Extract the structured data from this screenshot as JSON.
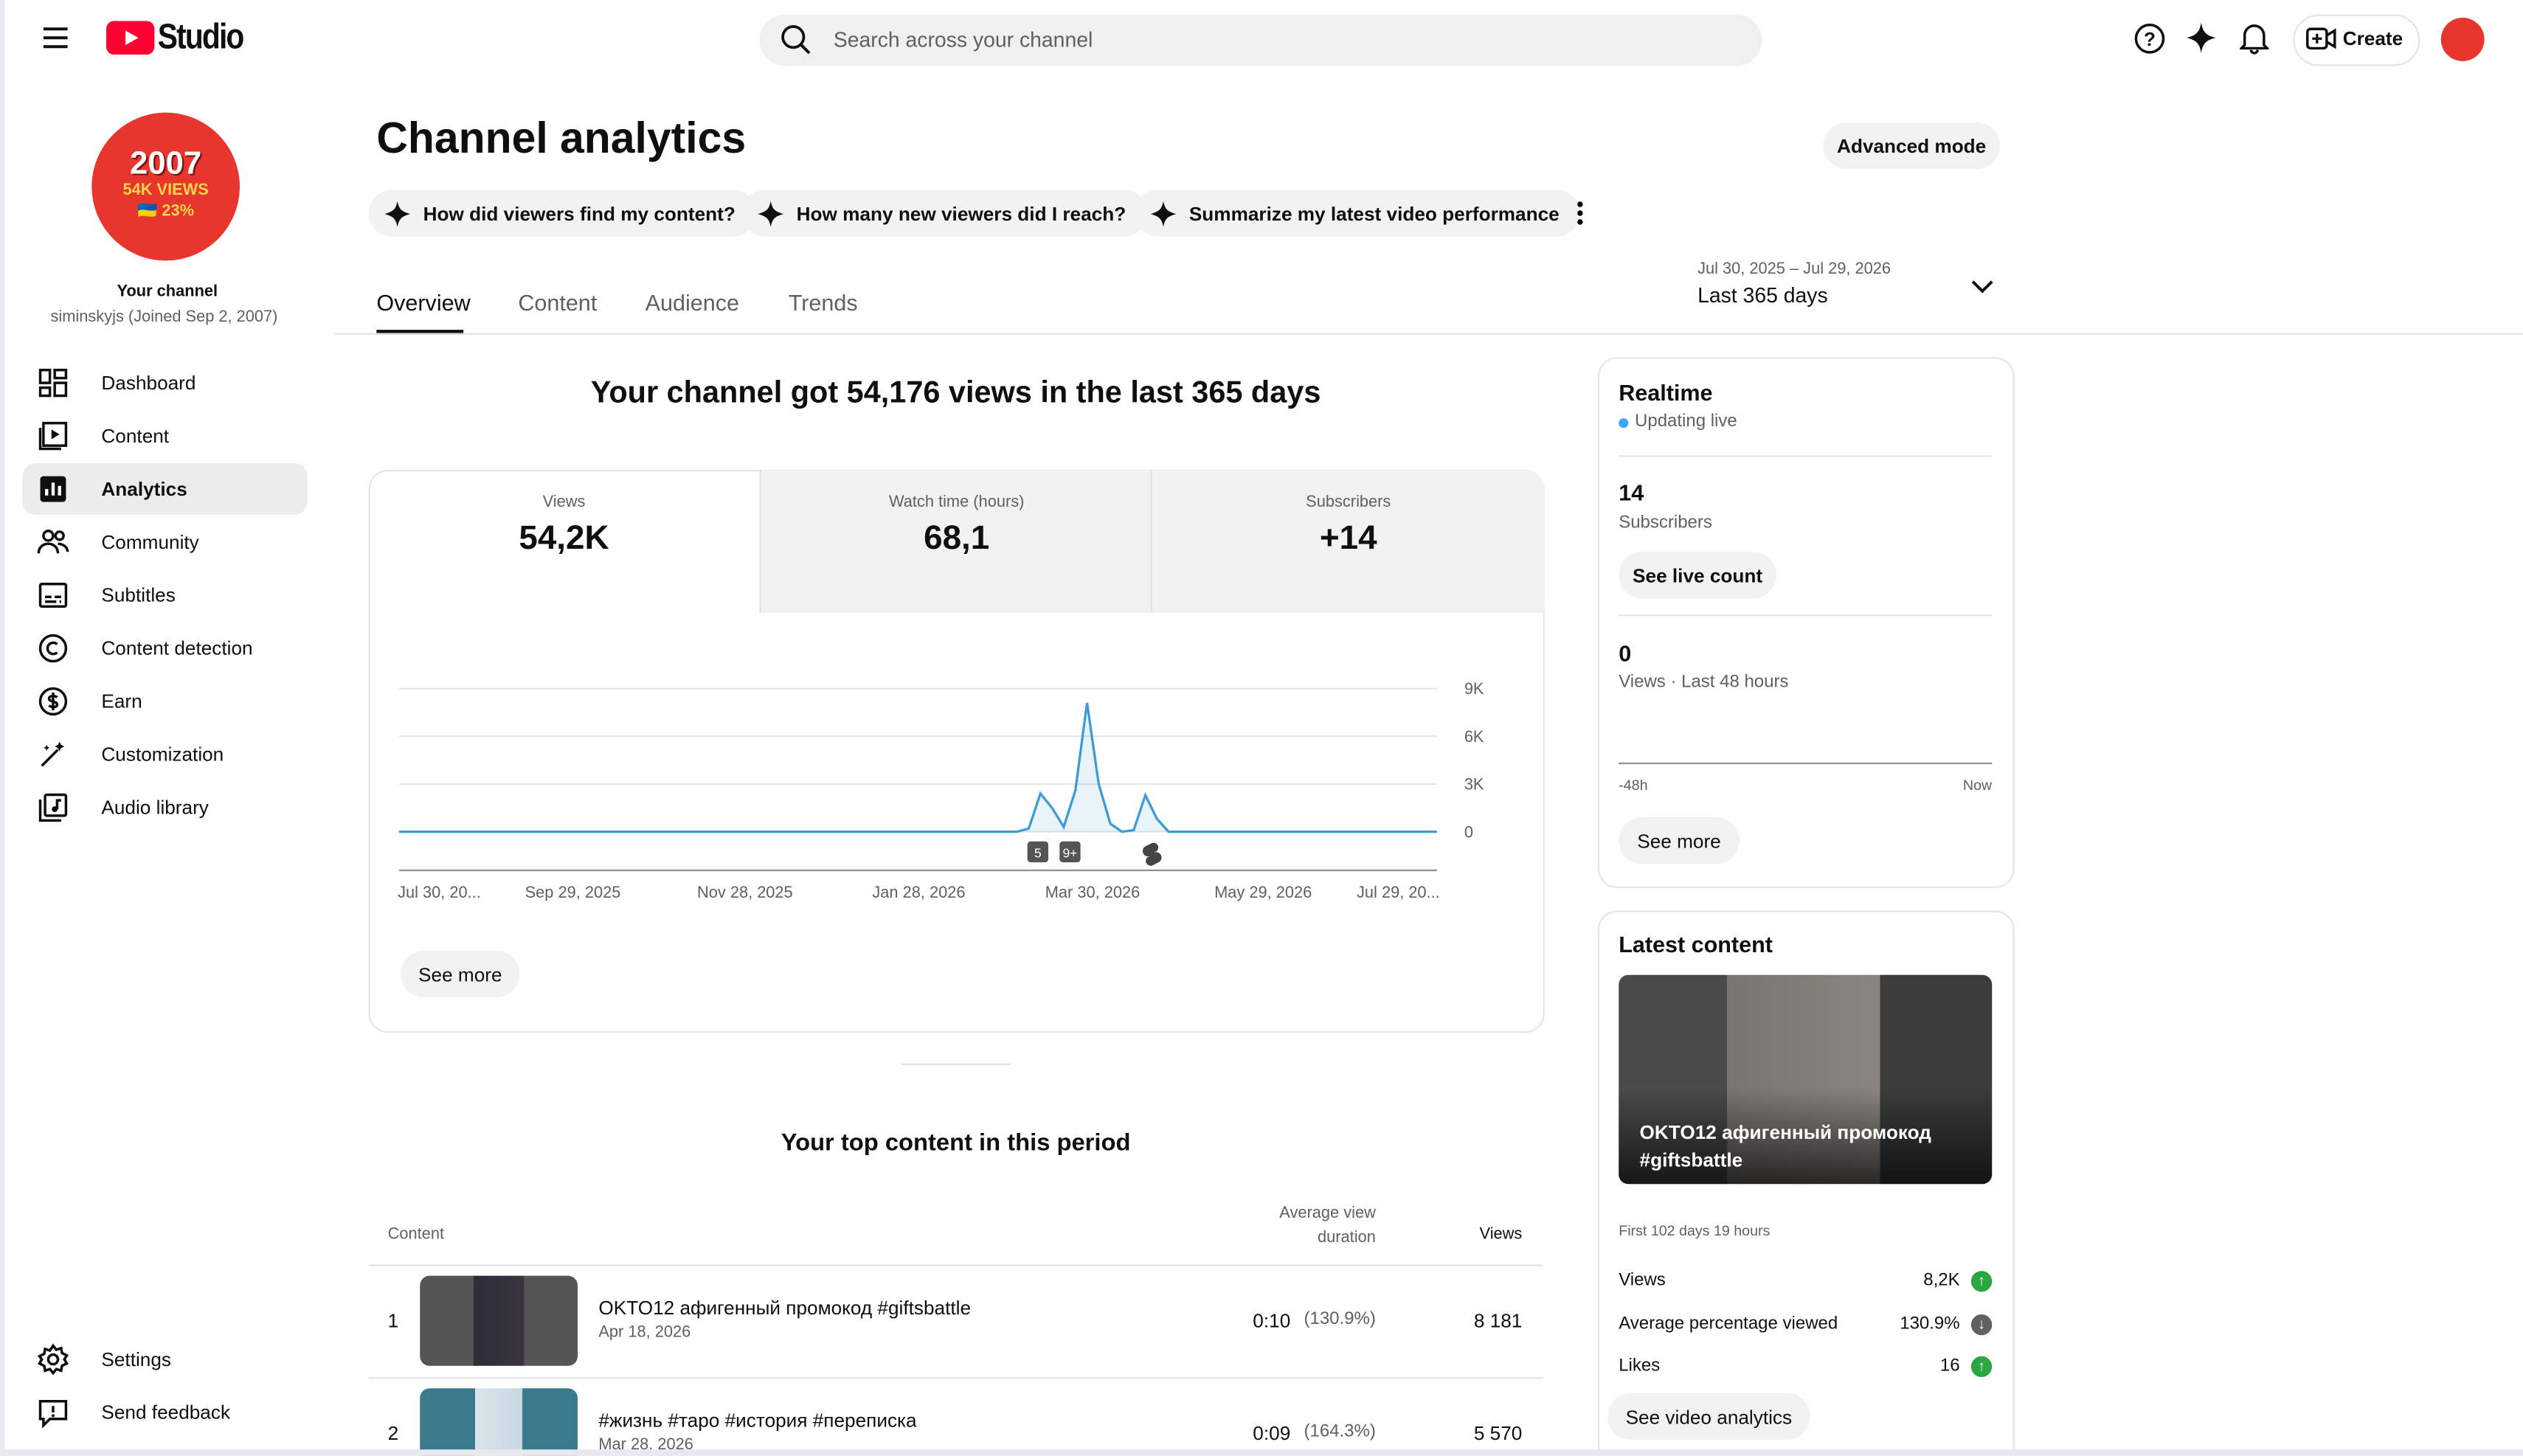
{
  "header": {
    "logo": "Studio",
    "search_placeholder": "Search across your channel",
    "create": "Create"
  },
  "sidebar": {
    "avatar": [
      "2007",
      "54K VIEWS",
      "🇺🇦 23%"
    ],
    "channel_label": "Your channel",
    "channel_handle": "siminskyjs (Joined Sep 2, 2007)",
    "nav": [
      "Dashboard",
      "Content",
      "Analytics",
      "Community",
      "Subtitles",
      "Content detection",
      "Earn",
      "Customization",
      "Audio library"
    ],
    "footer": [
      "Settings",
      "Send feedback"
    ]
  },
  "page": {
    "title": "Channel analytics",
    "advanced_mode": "Advanced mode",
    "chips": [
      "How did viewers find my content?",
      "How many new viewers did I reach?",
      "Summarize my latest video performance"
    ],
    "tabs": [
      "Overview",
      "Content",
      "Audience",
      "Trends"
    ],
    "date_range": "Jul 30, 2025 – Jul 29, 2026",
    "period": "Last 365 days"
  },
  "summary": {
    "headline": "Your channel got 54,176 views in the last 365 days",
    "metrics": [
      {
        "label": "Views",
        "value": "54,2K"
      },
      {
        "label": "Watch time (hours)",
        "value": "68,1"
      },
      {
        "label": "Subscribers",
        "value": "+14"
      }
    ],
    "see_more": "See more"
  },
  "chart": {
    "type": "line",
    "color": "#3e9bd6",
    "x_labels": [
      "Jul 30, 20...",
      "Sep 29, 2025",
      "Nov 28, 2025",
      "Jan 28, 2026",
      "Mar 30, 2026",
      "May 29, 2026",
      "Jul 29, 20..."
    ],
    "ylim": [
      0,
      9000
    ],
    "yticks": [
      {
        "value": 0,
        "label": "0"
      },
      {
        "value": 3000,
        "label": "3K"
      },
      {
        "value": 6000,
        "label": "6K"
      },
      {
        "value": 9000,
        "label": "9K"
      }
    ],
    "grid": true,
    "values": [
      0,
      0,
      0,
      0,
      0,
      0,
      0,
      0,
      0,
      0,
      0,
      0,
      0,
      0,
      0,
      0,
      0,
      0,
      0,
      0,
      0,
      0,
      0,
      0,
      0,
      0,
      0,
      0,
      0,
      0,
      0,
      0,
      0,
      0,
      0,
      0,
      0,
      0,
      0,
      0,
      0,
      0,
      0,
      0,
      0,
      0,
      0,
      0,
      0,
      0,
      0,
      0,
      0,
      0,
      200,
      2400,
      1500,
      300,
      2600,
      8100,
      3000,
      500,
      0,
      100,
      2300,
      800,
      0,
      0,
      0,
      0,
      0,
      0,
      0,
      0,
      0,
      0,
      0,
      0,
      0,
      0,
      0,
      0,
      0,
      0,
      0,
      0,
      0,
      0,
      0,
      0
    ],
    "markers": [
      "5",
      "9+"
    ]
  },
  "top_content": {
    "title": "Your top content in this period",
    "columns": [
      "Content",
      "Average view duration",
      "Views"
    ],
    "rows": [
      {
        "rank": "1",
        "title": "OKTO12 афигенный промокод #giftsbattle",
        "date": "Apr 18, 2026",
        "duration": "0:10",
        "percent": "(130.9%)",
        "views": "8 181"
      },
      {
        "rank": "2",
        "title": "#жизнь #таро #история #переписка",
        "date": "Mar 28, 2026",
        "duration": "0:09",
        "percent": "(164.3%)",
        "views": "5 570"
      }
    ]
  },
  "realtime": {
    "title": "Realtime",
    "status": "Updating live",
    "subscribers": "14",
    "subscribers_label": "Subscribers",
    "see_live_count": "See live count",
    "views": "0",
    "views_label": "Views · Last 48 hours",
    "axis_start": "-48h",
    "axis_end": "Now",
    "see_more": "See more"
  },
  "latest": {
    "title": "Latest content",
    "video_title": "OKTO12 афигенный промокод #giftsbattle",
    "since": "First 102 days 19 hours",
    "stats": [
      {
        "label": "Views",
        "value": "8,2K"
      },
      {
        "label": "Average percentage viewed",
        "value": "130.9%"
      },
      {
        "label": "Likes",
        "value": "16"
      }
    ],
    "button": "See video analytics"
  }
}
